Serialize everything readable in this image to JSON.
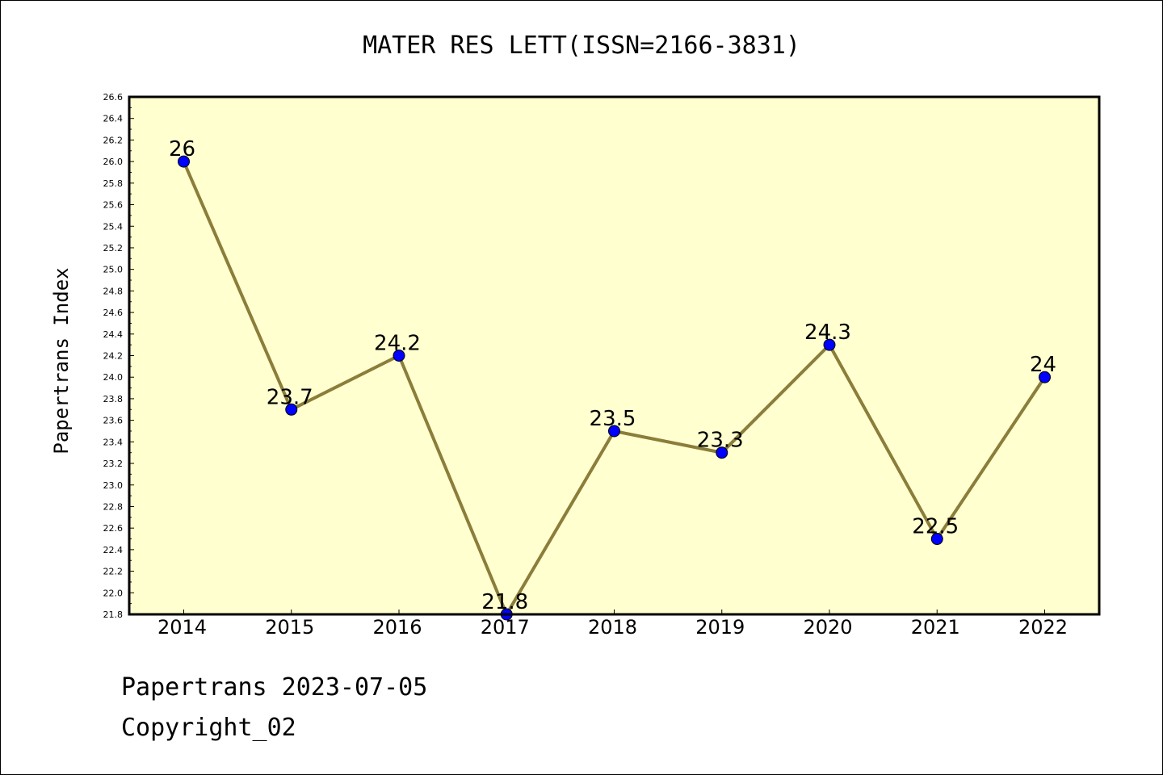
{
  "chart_data": {
    "type": "line",
    "title": "MATER RES LETT(ISSN=2166-3831)",
    "ylabel": "Papertrans Index",
    "xlabel": "",
    "x": [
      "2014",
      "2015",
      "2016",
      "2017",
      "2018",
      "2019",
      "2020",
      "2021",
      "2022"
    ],
    "series": [
      {
        "values": [
          26.0,
          23.7,
          24.2,
          21.8,
          23.5,
          23.3,
          24.3,
          22.5,
          24.0
        ],
        "labels": [
          "26",
          "23.7",
          "24.2",
          "21.8",
          "23.5",
          "23.3",
          "24.3",
          "22.5",
          "24"
        ]
      }
    ],
    "ylim": [
      21.8,
      26.6
    ],
    "ytick_step": 0.2,
    "ytick_labels": [
      "21.8",
      "22.0",
      "22.2",
      "22.4",
      "22.6",
      "22.8",
      "23.0",
      "23.2",
      "23.4",
      "23.6",
      "23.8",
      "24.0",
      "24.2",
      "24.4",
      "24.6",
      "24.8",
      "25.0",
      "25.2",
      "25.4",
      "25.6",
      "25.8",
      "26.0",
      "26.2",
      "26.4",
      "26.6"
    ],
    "grid": false,
    "colors": {
      "plot_background": "#ffffd0",
      "line": "#8b7d3a",
      "marker": "#0000ff"
    }
  },
  "footer": {
    "line1": "Papertrans 2023-07-05",
    "line2": "Copyright_02"
  }
}
